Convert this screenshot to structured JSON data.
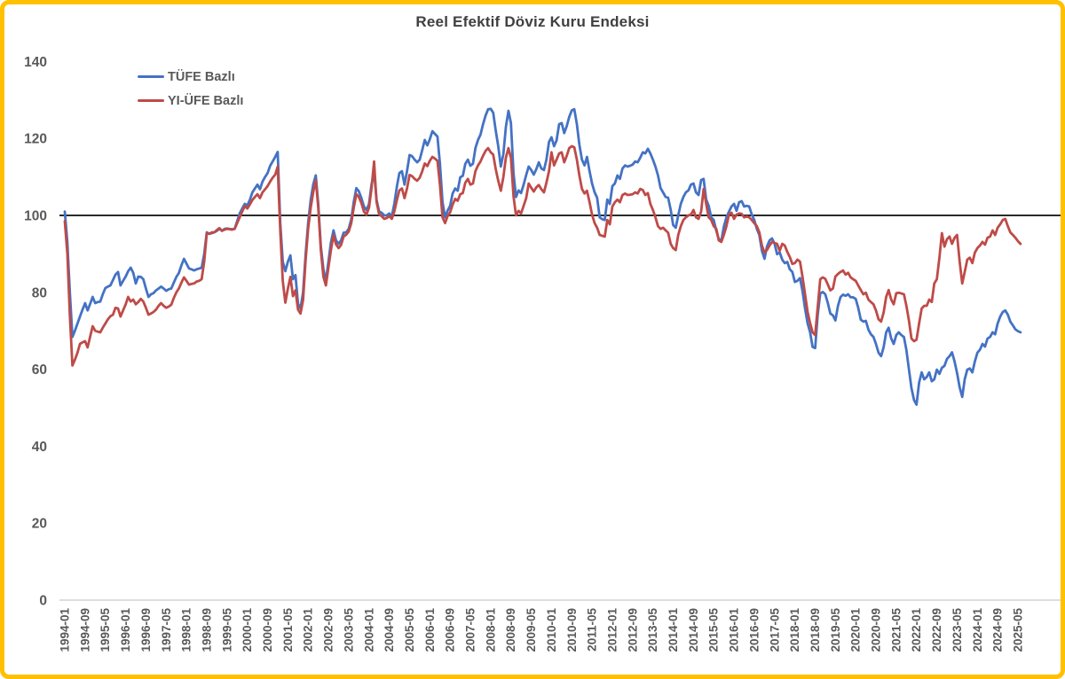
{
  "chart": {
    "title": "Reel Efektif Döviz Kuru Endeksi",
    "legend": [
      {
        "label": "TÜFE Bazlı",
        "color": "#4472C4"
      },
      {
        "label": "YI-ÜFE Bazlı",
        "color": "#BE4B48"
      }
    ]
  },
  "chart_data": {
    "type": "line",
    "title": "Reel Efektif Döviz Kuru Endeksi",
    "frequency": "monthly",
    "x_start": "1994-01",
    "x_end": "2025-06",
    "ylim": [
      0,
      140
    ],
    "reference_line": 100,
    "grid": false,
    "legend_position": "top-left",
    "y_tick_labels": [
      "0",
      "20",
      "40",
      "60",
      "80",
      "100",
      "120",
      "140"
    ],
    "x_tick_step_months": 8,
    "x_tick_labels": [
      "1994-01",
      "1994-09",
      "1995-05",
      "1996-01",
      "1996-09",
      "1997-05",
      "1998-01",
      "1998-09",
      "1999-05",
      "2000-01",
      "2000-09",
      "2001-05",
      "2002-01",
      "2002-09",
      "2003-05",
      "2004-01",
      "2004-09",
      "2005-05",
      "2006-01",
      "2006-09",
      "2007-05",
      "2008-01",
      "2008-09",
      "2009-05",
      "2010-01",
      "2010-09",
      "2011-05",
      "2012-01",
      "2012-09",
      "2013-05",
      "2014-01",
      "2014-09",
      "2015-05",
      "2016-01",
      "2016-09",
      "2017-05",
      "2018-01",
      "2018-09",
      "2019-05",
      "2020-01",
      "2020-09",
      "2021-05",
      "2022-01",
      "2022-09",
      "2023-05",
      "2024-01",
      "2024-09",
      "2025-05"
    ],
    "series": [
      {
        "name": "TÜFE Bazlı",
        "color": "#4472C4",
        "values": [
          101.0,
          93.0,
          80.0,
          68.4,
          70.0,
          71.9,
          73.7,
          75.5,
          77.2,
          75.3,
          77.0,
          78.8,
          77.2,
          77.5,
          77.6,
          79.5,
          81.1,
          81.5,
          81.8,
          83.2,
          84.6,
          85.3,
          81.8,
          83.0,
          84.1,
          85.5,
          86.4,
          85.1,
          82.3,
          84.1,
          84.0,
          83.4,
          81.0,
          78.8,
          79.5,
          79.8,
          80.5,
          81.0,
          81.5,
          81.0,
          80.4,
          80.8,
          81.0,
          82.5,
          84.0,
          85.0,
          87.0,
          88.7,
          87.5,
          86.2,
          86.0,
          85.7,
          86.0,
          86.2,
          86.4,
          90.0,
          95.6,
          95.2,
          95.4,
          95.6,
          96.0,
          96.5,
          96.0,
          96.5,
          96.6,
          96.5,
          96.4,
          96.5,
          98.5,
          100.5,
          101.8,
          103.0,
          102.6,
          104.0,
          106.0,
          107.0,
          108.0,
          106.8,
          108.8,
          110.0,
          111.0,
          112.9,
          114.0,
          115.2,
          116.5,
          98.0,
          88.0,
          85.5,
          88.0,
          89.6,
          83.4,
          84.5,
          77.0,
          75.8,
          80.0,
          90.0,
          98.0,
          104.0,
          108.0,
          110.4,
          103.0,
          92.0,
          86.0,
          83.0,
          88.0,
          93.0,
          96.1,
          93.5,
          92.6,
          93.5,
          95.5,
          95.6,
          96.5,
          99.0,
          103.5,
          107.1,
          106.3,
          104.5,
          102.3,
          101.4,
          103.0,
          108.0,
          111.3,
          104.0,
          101.0,
          100.7,
          100.0,
          100.0,
          100.5,
          99.8,
          103.0,
          107.5,
          111.0,
          111.5,
          108.0,
          111.5,
          115.7,
          115.4,
          114.5,
          113.8,
          114.5,
          117.0,
          119.6,
          118.2,
          119.8,
          121.9,
          121.2,
          120.5,
          113.5,
          103.5,
          99.5,
          101.2,
          102.5,
          105.7,
          107.0,
          106.4,
          109.9,
          110.3,
          113.4,
          114.5,
          112.9,
          113.4,
          117.5,
          119.6,
          121.0,
          123.7,
          126.0,
          127.6,
          127.7,
          126.7,
          122.0,
          118.0,
          112.7,
          116.0,
          123.0,
          127.2,
          124.0,
          111.0,
          104.8,
          106.5,
          105.8,
          108.0,
          110.5,
          112.7,
          111.8,
          110.6,
          112.0,
          113.8,
          112.2,
          111.8,
          114.5,
          119.1,
          120.3,
          118.0,
          119.5,
          123.7,
          124.0,
          121.4,
          123.2,
          125.6,
          127.3,
          127.6,
          123.7,
          118.4,
          114.5,
          113.0,
          115.2,
          111.5,
          108.3,
          106.0,
          104.6,
          99.5,
          99.0,
          98.8,
          104.1,
          103.0,
          107.6,
          108.3,
          110.4,
          109.5,
          112.2,
          113.0,
          112.7,
          112.9,
          113.2,
          114.0,
          113.8,
          115.0,
          116.4,
          116.1,
          117.3,
          116.1,
          114.5,
          112.7,
          110.4,
          107.1,
          106.0,
          104.8,
          104.6,
          101.5,
          97.5,
          96.8,
          100.0,
          103.0,
          104.8,
          106.0,
          106.5,
          108.0,
          108.3,
          106.0,
          105.3,
          109.2,
          109.5,
          104.1,
          102.5,
          99.5,
          98.8,
          96.0,
          93.8,
          93.5,
          97.2,
          99.5,
          101.0,
          102.3,
          103.0,
          101.2,
          103.4,
          103.7,
          102.3,
          102.5,
          102.3,
          100.2,
          98.8,
          96.5,
          94.9,
          90.8,
          88.7,
          91.9,
          93.5,
          94.0,
          92.6,
          89.9,
          90.4,
          88.5,
          87.6,
          87.9,
          86.0,
          85.3,
          82.7,
          83.0,
          83.7,
          80.4,
          75.8,
          72.0,
          69.6,
          65.8,
          65.5,
          74.0,
          79.7,
          80.1,
          79.5,
          77.2,
          74.5,
          74.0,
          72.7,
          76.5,
          78.8,
          79.4,
          79.1,
          79.5,
          78.7,
          78.7,
          78.3,
          76.0,
          72.9,
          72.4,
          72.6,
          70.3,
          69.1,
          68.4,
          66.6,
          64.3,
          63.4,
          65.7,
          69.6,
          70.8,
          68.0,
          66.6,
          68.9,
          69.6,
          68.9,
          68.4,
          65.0,
          59.9,
          55.1,
          52.0,
          50.8,
          56.5,
          59.2,
          57.4,
          58.0,
          59.2,
          56.9,
          57.4,
          59.9,
          58.8,
          60.4,
          60.9,
          62.7,
          63.4,
          64.4,
          62.0,
          59.0,
          55.3,
          52.8,
          57.4,
          59.9,
          60.2,
          59.2,
          62.0,
          64.3,
          65.1,
          66.6,
          65.9,
          68.0,
          68.4,
          69.6,
          69.1,
          71.9,
          73.7,
          74.9,
          75.3,
          74.2,
          72.4,
          71.4,
          70.4,
          69.9,
          69.6
        ]
      },
      {
        "name": "YI-ÜFE Bazlı",
        "color": "#BE4B48",
        "values": [
          98.5,
          90.0,
          74.0,
          61.0,
          62.5,
          64.3,
          66.6,
          67.0,
          67.3,
          65.7,
          68.5,
          71.2,
          70.0,
          69.8,
          69.6,
          70.8,
          71.9,
          73.0,
          73.8,
          74.2,
          76.0,
          75.8,
          73.7,
          75.3,
          76.9,
          78.8,
          77.6,
          78.1,
          76.9,
          77.5,
          78.3,
          77.6,
          76.0,
          74.2,
          74.5,
          74.9,
          75.5,
          76.5,
          77.2,
          76.5,
          76.0,
          76.3,
          76.8,
          78.5,
          80.0,
          81.0,
          82.5,
          83.9,
          83.0,
          82.0,
          82.2,
          82.3,
          82.8,
          83.0,
          83.4,
          88.0,
          95.4,
          95.2,
          95.6,
          95.6,
          96.2,
          96.7,
          96.0,
          96.3,
          96.5,
          96.4,
          96.3,
          96.5,
          98.0,
          99.5,
          101.0,
          102.4,
          101.8,
          102.8,
          104.0,
          104.8,
          105.5,
          104.5,
          106.0,
          106.8,
          107.6,
          108.8,
          109.8,
          110.6,
          112.7,
          96.0,
          83.0,
          77.3,
          81.0,
          84.0,
          79.0,
          80.5,
          75.5,
          74.5,
          78.0,
          88.5,
          96.5,
          102.0,
          106.0,
          109.2,
          102.0,
          91.0,
          84.0,
          81.8,
          86.5,
          91.0,
          94.9,
          92.5,
          91.5,
          92.3,
          94.5,
          95.0,
          95.8,
          98.0,
          102.0,
          105.5,
          104.8,
          103.2,
          101.0,
          100.2,
          102.0,
          107.0,
          114.0,
          103.5,
          100.3,
          99.8,
          99.1,
          99.3,
          99.8,
          99.1,
          101.0,
          104.0,
          106.5,
          107.0,
          104.5,
          107.0,
          110.5,
          110.2,
          109.5,
          109.0,
          109.8,
          111.5,
          113.5,
          112.8,
          114.2,
          115.2,
          114.8,
          114.2,
          108.0,
          99.5,
          98.0,
          99.8,
          100.8,
          102.8,
          104.3,
          103.8,
          105.5,
          105.8,
          108.5,
          109.5,
          108.0,
          108.3,
          111.5,
          113.0,
          114.0,
          115.5,
          116.8,
          117.5,
          116.4,
          115.8,
          112.0,
          109.0,
          106.4,
          110.0,
          115.0,
          117.5,
          115.0,
          105.0,
          100.0,
          101.2,
          100.5,
          102.5,
          104.5,
          108.3,
          107.2,
          106.2,
          107.3,
          107.9,
          106.8,
          106.0,
          108.5,
          111.5,
          116.4,
          113.0,
          114.5,
          116.1,
          116.4,
          113.8,
          115.5,
          117.5,
          118.0,
          117.7,
          114.5,
          110.4,
          106.9,
          105.7,
          106.4,
          103.4,
          100.2,
          98.0,
          96.8,
          94.9,
          94.7,
          94.5,
          98.8,
          97.7,
          102.3,
          103.4,
          104.1,
          103.4,
          105.3,
          105.7,
          105.3,
          105.4,
          105.5,
          106.0,
          105.7,
          106.9,
          106.6,
          105.3,
          105.8,
          103.0,
          101.4,
          99.5,
          97.2,
          96.5,
          96.8,
          96.1,
          95.5,
          92.6,
          91.5,
          91.0,
          94.9,
          97.2,
          98.8,
          99.5,
          100.0,
          100.2,
          101.4,
          99.5,
          99.1,
          101.0,
          106.9,
          103.0,
          99.5,
          98.8,
          97.2,
          96.5,
          93.5,
          93.1,
          95.0,
          97.2,
          100.2,
          100.7,
          99.1,
          100.2,
          100.5,
          100.4,
          99.5,
          99.7,
          99.5,
          98.8,
          98.0,
          97.2,
          95.6,
          92.2,
          90.3,
          91.0,
          92.2,
          93.1,
          92.8,
          92.6,
          90.8,
          92.6,
          92.2,
          90.5,
          89.2,
          87.4,
          87.6,
          88.5,
          88.0,
          84.1,
          79.5,
          75.0,
          72.0,
          69.6,
          68.9,
          76.0,
          83.4,
          83.9,
          83.5,
          82.0,
          80.5,
          81.0,
          84.1,
          84.8,
          85.3,
          85.7,
          84.6,
          85.1,
          83.9,
          83.4,
          83.0,
          81.8,
          80.6,
          79.5,
          79.9,
          78.1,
          77.5,
          76.9,
          75.3,
          73.0,
          72.4,
          74.7,
          78.8,
          80.6,
          78.1,
          76.9,
          79.8,
          79.9,
          79.7,
          79.5,
          76.5,
          72.6,
          68.0,
          67.3,
          67.7,
          71.9,
          75.8,
          76.5,
          76.5,
          78.1,
          77.5,
          82.3,
          83.4,
          89.0,
          95.4,
          91.9,
          93.8,
          94.5,
          92.6,
          94.2,
          94.9,
          88.0,
          82.3,
          85.3,
          88.5,
          89.0,
          87.6,
          90.3,
          91.5,
          92.2,
          93.1,
          92.4,
          94.2,
          94.5,
          96.1,
          94.9,
          96.8,
          97.7,
          98.8,
          99.1,
          97.2,
          95.6,
          94.9,
          94.2,
          93.3,
          92.6
        ]
      }
    ]
  }
}
